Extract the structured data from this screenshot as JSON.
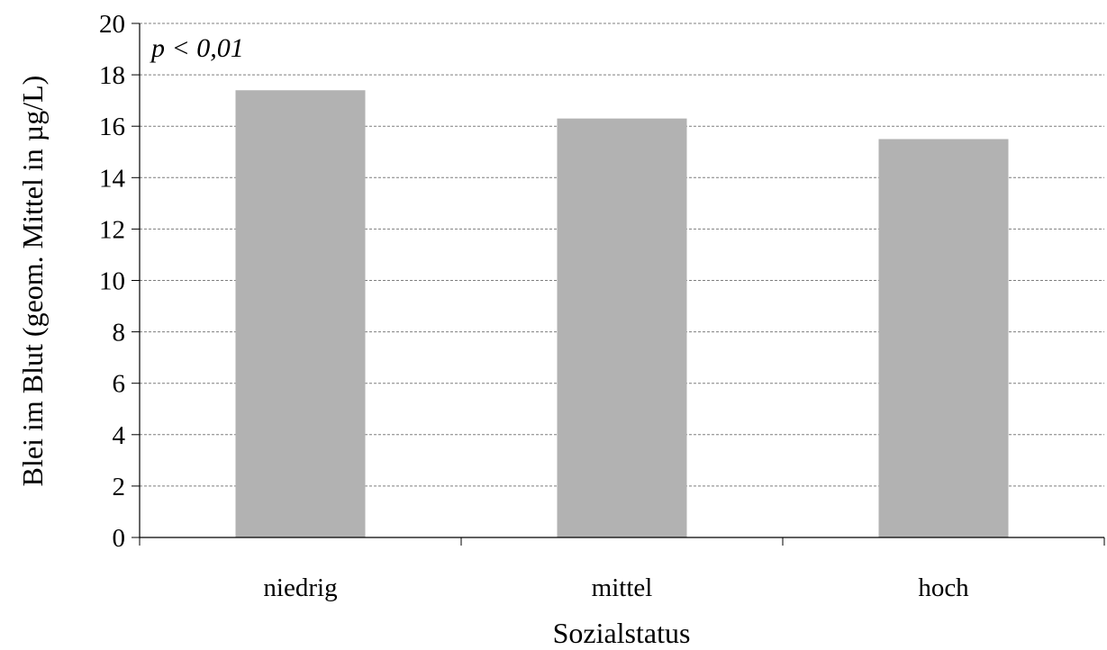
{
  "chart_data": {
    "type": "bar",
    "categories": [
      "niedrig",
      "mittel",
      "hoch"
    ],
    "values": [
      17.4,
      16.3,
      15.5
    ],
    "xlabel": "Sozialstatus",
    "ylabel": "Blei im Blut (geom. Mittel in µg/L)",
    "ylim": [
      0,
      20
    ],
    "yticks": [
      0,
      2,
      4,
      6,
      8,
      10,
      12,
      14,
      16,
      18,
      20
    ],
    "annotation": "p < 0,01",
    "grid": true,
    "legend": "none",
    "colors": {
      "bar": "#b2b2b2",
      "grid": "#7f7f7f",
      "axis": "#000000"
    }
  }
}
